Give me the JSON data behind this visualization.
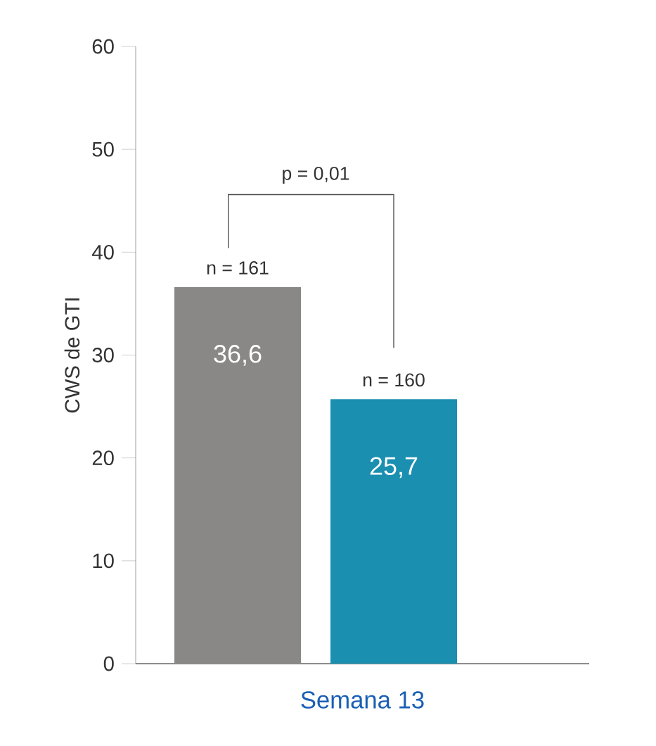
{
  "chart_data": {
    "type": "bar",
    "xlabel": "Semana 13",
    "ylabel": "CWS de GTI",
    "categories": [
      null,
      null
    ],
    "series": [
      {
        "colors": [
          "#8a8886",
          "#1a8fb0"
        ],
        "values": [
          36.6,
          25.7
        ],
        "value_labels": [
          "36,6",
          "25,7"
        ]
      }
    ],
    "ylim": [
      0,
      60
    ],
    "yticks": [
      0,
      10,
      20,
      30,
      40,
      50,
      60
    ],
    "grid": false,
    "annotations": [
      "n = 161",
      "n = 160",
      "p = 0,01"
    ]
  }
}
